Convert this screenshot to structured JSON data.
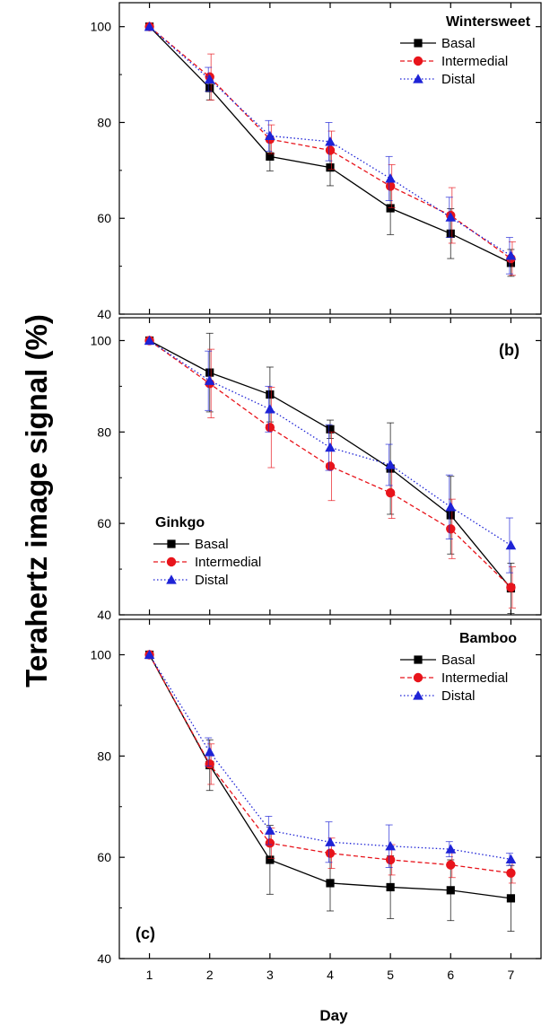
{
  "figure": {
    "ylabel": "Terahertz image signal (%)",
    "xlabel": "Day"
  },
  "chart_data": [
    {
      "type": "line",
      "title": "Wintersweet",
      "x": [
        1,
        2,
        3,
        4,
        5,
        6,
        7
      ],
      "xlim": [
        0.5,
        7.5
      ],
      "ylim": [
        40,
        105
      ],
      "yticks": [
        40,
        60,
        80,
        100
      ],
      "show_xticklabels": false,
      "legend_position": "top-right",
      "series": [
        {
          "name": "Basal",
          "values": [
            100,
            87.2,
            72.9,
            70.6,
            62.1,
            56.8,
            50.7
          ],
          "errors": [
            0,
            2.5,
            3.0,
            3.8,
            5.5,
            5.2,
            2.8
          ],
          "color": "#000000",
          "dash": "solid",
          "marker": "square"
        },
        {
          "name": "Intermedial",
          "values": [
            100,
            89.5,
            76.5,
            74.2,
            66.7,
            60.6,
            51.6
          ],
          "errors": [
            0,
            4.8,
            3.0,
            4.0,
            4.5,
            5.8,
            3.5
          ],
          "color": "#e8141b",
          "dash": "dashed",
          "marker": "circle"
        },
        {
          "name": "Distal",
          "values": [
            100,
            89.0,
            77.2,
            76.0,
            68.3,
            60.2,
            52.2
          ],
          "errors": [
            0,
            2.5,
            3.2,
            4.0,
            4.6,
            4.2,
            3.8
          ],
          "color": "#1e23d6",
          "dash": "dotted",
          "marker": "triangle"
        }
      ]
    },
    {
      "type": "line",
      "title": "Ginkgo",
      "panel_label": "(b)",
      "x": [
        1,
        2,
        3,
        4,
        5,
        6,
        7
      ],
      "xlim": [
        0.5,
        7.5
      ],
      "ylim": [
        40,
        105
      ],
      "yticks": [
        40,
        60,
        80,
        100
      ],
      "show_xticklabels": false,
      "legend_position": "bottom-left",
      "series": [
        {
          "name": "Basal",
          "values": [
            100,
            93.0,
            88.2,
            80.6,
            72.0,
            61.8,
            45.8
          ],
          "errors": [
            0,
            8.6,
            6.0,
            2.0,
            10.0,
            8.5,
            5.5
          ],
          "color": "#000000",
          "dash": "solid",
          "marker": "square"
        },
        {
          "name": "Intermedial",
          "values": [
            100,
            90.6,
            81.0,
            72.5,
            66.7,
            58.8,
            46.0
          ],
          "errors": [
            0,
            7.5,
            8.8,
            7.5,
            5.6,
            6.5,
            4.5
          ],
          "color": "#e8141b",
          "dash": "dashed",
          "marker": "circle"
        },
        {
          "name": "Distal",
          "values": [
            100,
            91.2,
            85.0,
            76.6,
            72.8,
            63.6,
            55.2
          ],
          "errors": [
            0,
            6.5,
            5.0,
            5.0,
            4.5,
            7.0,
            6.0
          ],
          "color": "#1e23d6",
          "dash": "dotted",
          "marker": "triangle"
        }
      ]
    },
    {
      "type": "line",
      "title": "Bamboo",
      "panel_label": "(c)",
      "x": [
        1,
        2,
        3,
        4,
        5,
        6,
        7
      ],
      "xlim": [
        0.5,
        7.5
      ],
      "ylim": [
        40,
        107
      ],
      "yticks": [
        40,
        60,
        80,
        100
      ],
      "xticks": [
        1,
        2,
        3,
        4,
        5,
        6,
        7
      ],
      "show_xticklabels": true,
      "legend_position": "top-right",
      "series": [
        {
          "name": "Basal",
          "values": [
            100,
            78.2,
            59.5,
            54.9,
            54.1,
            53.5,
            51.9
          ],
          "errors": [
            0,
            5.0,
            6.8,
            5.5,
            6.2,
            6.0,
            6.5
          ],
          "color": "#000000",
          "dash": "solid",
          "marker": "square"
        },
        {
          "name": "Intermedial",
          "values": [
            100,
            78.4,
            62.8,
            60.8,
            59.5,
            58.5,
            56.9
          ],
          "errors": [
            0,
            4.0,
            3.0,
            3.0,
            3.0,
            2.5,
            2.0
          ],
          "color": "#e8141b",
          "dash": "dashed",
          "marker": "circle"
        },
        {
          "name": "Distal",
          "values": [
            100,
            80.8,
            65.3,
            63.0,
            62.2,
            61.6,
            59.6
          ],
          "errors": [
            0,
            2.8,
            2.8,
            4.0,
            4.2,
            1.5,
            1.2
          ],
          "color": "#1e23d6",
          "dash": "dotted",
          "marker": "triangle"
        }
      ]
    }
  ]
}
